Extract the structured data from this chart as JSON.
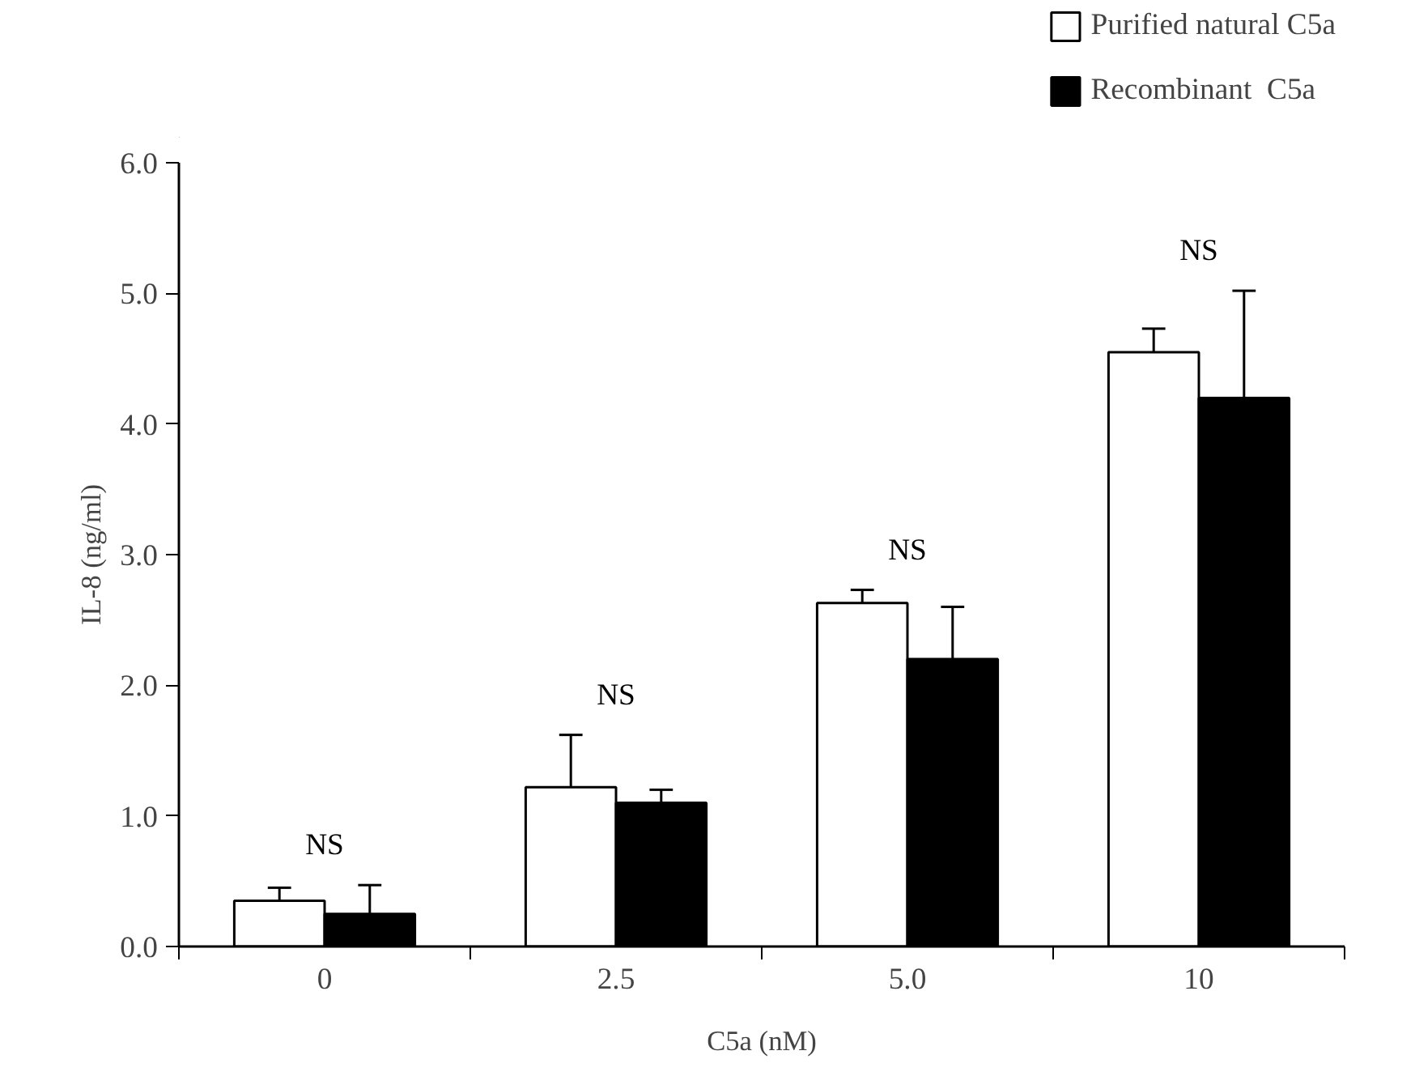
{
  "chart_data": {
    "type": "bar",
    "xlabel": "C5a (nM)",
    "ylabel": "IL-8 (ng/ml)",
    "categories": [
      "0",
      "2.5",
      "5.0",
      "10"
    ],
    "series": [
      {
        "name": "Purified natural C5a",
        "color": "#ffffff",
        "values": [
          0.35,
          1.22,
          2.63,
          4.55
        ],
        "errors": [
          [
            0.35,
            0.45
          ],
          [
            1.22,
            1.62
          ],
          [
            2.63,
            2.73
          ],
          [
            4.55,
            4.73
          ]
        ]
      },
      {
        "name": "Recombinant  C5a",
        "color": "#000000",
        "values": [
          0.25,
          1.1,
          2.2,
          4.2
        ],
        "errors": [
          [
            0.25,
            0.47
          ],
          [
            1.1,
            1.2
          ],
          [
            2.2,
            2.6
          ],
          [
            4.2,
            5.02
          ]
        ]
      }
    ],
    "ylim": [
      0,
      6
    ],
    "yticks": [
      {
        "value": 0,
        "label": "0.0"
      },
      {
        "value": 1,
        "label": "1.0"
      },
      {
        "value": 2,
        "label": "2.0"
      },
      {
        "value": 3,
        "label": "3.0"
      },
      {
        "value": 4,
        "label": "4.0"
      },
      {
        "value": 5,
        "label": "5.0"
      },
      {
        "value": 6,
        "label": "6.0"
      }
    ],
    "annotations": [
      "NS",
      "NS",
      "NS",
      "NS"
    ],
    "legend": "top right",
    "grid": false
  }
}
